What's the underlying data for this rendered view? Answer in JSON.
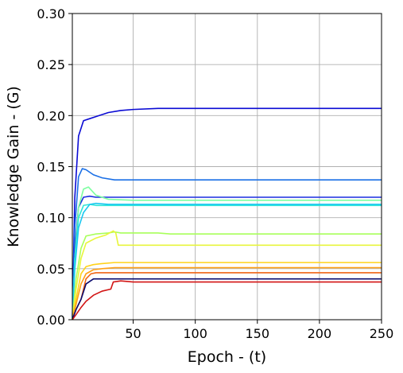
{
  "chart_data": {
    "type": "line",
    "xlabel": "Epoch - (t)",
    "ylabel": "Knowledge Gain - (G)",
    "xlim": [
      1,
      250
    ],
    "ylim": [
      0,
      0.3
    ],
    "xticks": [
      50,
      100,
      150,
      200,
      250
    ],
    "xtick_labels": [
      "50",
      "100",
      "150",
      "200",
      "250"
    ],
    "yticks": [
      0,
      0.05,
      0.1,
      0.15,
      0.2,
      0.25,
      0.3
    ],
    "ytick_labels": [
      "0.00",
      "0.05",
      "0.10",
      "0.15",
      "0.20",
      "0.25",
      "0.30"
    ],
    "grid": true,
    "series": [
      {
        "color": "#0a0ad4",
        "x": [
          1,
          3,
          6,
          10,
          15,
          20,
          30,
          40,
          50,
          70,
          100,
          150,
          200,
          250
        ],
        "y": [
          0.0,
          0.12,
          0.18,
          0.195,
          0.197,
          0.199,
          0.203,
          0.205,
          0.206,
          0.207,
          0.207,
          0.207,
          0.207,
          0.207
        ]
      },
      {
        "color": "#1a6fe6",
        "x": [
          1,
          3,
          6,
          9,
          12,
          18,
          25,
          35,
          50,
          100,
          150,
          200,
          250
        ],
        "y": [
          0.0,
          0.09,
          0.14,
          0.148,
          0.147,
          0.142,
          0.139,
          0.137,
          0.137,
          0.137,
          0.137,
          0.137,
          0.137
        ]
      },
      {
        "color": "#1a2ee0",
        "x": [
          1,
          3,
          6,
          10,
          15,
          20,
          30,
          50,
          100,
          150,
          200,
          250
        ],
        "y": [
          0.0,
          0.07,
          0.11,
          0.12,
          0.121,
          0.12,
          0.12,
          0.12,
          0.12,
          0.12,
          0.12,
          0.12
        ]
      },
      {
        "color": "#7cffa0",
        "x": [
          1,
          3,
          6,
          10,
          14,
          20,
          30,
          50,
          100,
          150,
          200,
          250
        ],
        "y": [
          0.0,
          0.06,
          0.11,
          0.128,
          0.13,
          0.122,
          0.118,
          0.117,
          0.117,
          0.117,
          0.117,
          0.117
        ]
      },
      {
        "color": "#2ee6d8",
        "x": [
          1,
          3,
          6,
          10,
          15,
          20,
          30,
          50,
          100,
          150,
          200,
          250
        ],
        "y": [
          0.0,
          0.06,
          0.1,
          0.112,
          0.113,
          0.112,
          0.112,
          0.112,
          0.112,
          0.112,
          0.112,
          0.112
        ]
      },
      {
        "color": "#1ac8f0",
        "x": [
          1,
          3,
          6,
          10,
          15,
          20,
          30,
          50,
          100,
          150,
          200,
          250
        ],
        "y": [
          0.0,
          0.05,
          0.09,
          0.105,
          0.113,
          0.114,
          0.113,
          0.113,
          0.113,
          0.113,
          0.113,
          0.113
        ]
      },
      {
        "color": "#a8ff5a",
        "x": [
          1,
          4,
          8,
          12,
          20,
          30,
          35,
          40,
          50,
          70,
          80,
          100,
          150,
          200,
          250
        ],
        "y": [
          0.0,
          0.04,
          0.07,
          0.082,
          0.084,
          0.085,
          0.086,
          0.085,
          0.085,
          0.085,
          0.084,
          0.084,
          0.084,
          0.084,
          0.084
        ]
      },
      {
        "color": "#e8f53c",
        "x": [
          1,
          4,
          8,
          12,
          20,
          28,
          34,
          36,
          38,
          50,
          100,
          150,
          200,
          250
        ],
        "y": [
          0.0,
          0.03,
          0.06,
          0.075,
          0.08,
          0.083,
          0.087,
          0.085,
          0.073,
          0.073,
          0.073,
          0.073,
          0.073,
          0.073
        ]
      },
      {
        "color": "#ffd21a",
        "x": [
          1,
          4,
          8,
          12,
          18,
          25,
          35,
          50,
          100,
          150,
          200,
          250
        ],
        "y": [
          0.0,
          0.02,
          0.045,
          0.052,
          0.054,
          0.055,
          0.056,
          0.056,
          0.056,
          0.056,
          0.056,
          0.056
        ]
      },
      {
        "color": "#ffa014",
        "x": [
          1,
          4,
          8,
          12,
          18,
          25,
          35,
          50,
          100,
          150,
          200,
          250
        ],
        "y": [
          0.0,
          0.015,
          0.035,
          0.045,
          0.049,
          0.05,
          0.051,
          0.051,
          0.051,
          0.051,
          0.051,
          0.051
        ]
      },
      {
        "color": "#f06414",
        "x": [
          1,
          4,
          8,
          12,
          16,
          20,
          30,
          50,
          100,
          150,
          200,
          250
        ],
        "y": [
          0.0,
          0.01,
          0.02,
          0.04,
          0.045,
          0.046,
          0.046,
          0.046,
          0.046,
          0.046,
          0.046,
          0.046
        ]
      },
      {
        "color": "#0a0a6e",
        "x": [
          1,
          4,
          8,
          12,
          18,
          25,
          35,
          50,
          100,
          150,
          200,
          250
        ],
        "y": [
          0.0,
          0.01,
          0.02,
          0.035,
          0.04,
          0.04,
          0.04,
          0.04,
          0.04,
          0.04,
          0.04,
          0.04
        ]
      },
      {
        "color": "#d21414",
        "x": [
          1,
          4,
          8,
          12,
          18,
          25,
          32,
          34,
          40,
          50,
          100,
          150,
          200,
          250
        ],
        "y": [
          0.0,
          0.005,
          0.012,
          0.018,
          0.024,
          0.028,
          0.03,
          0.037,
          0.038,
          0.037,
          0.037,
          0.037,
          0.037,
          0.037
        ]
      }
    ]
  }
}
